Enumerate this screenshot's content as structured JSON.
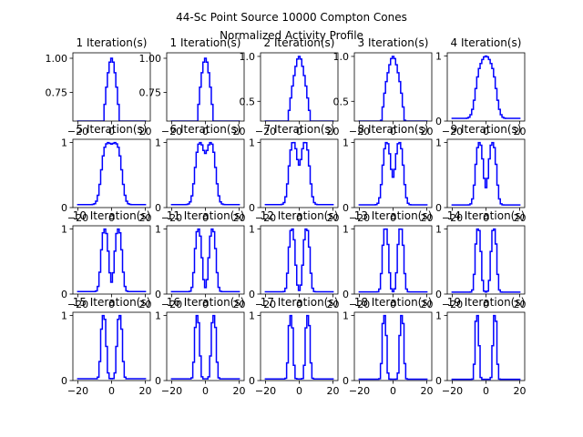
{
  "figure": {
    "suptitle_line1": "44-Sc Point Source 10000 Compton Cones",
    "suptitle_line2": "Normalized Activity Profile",
    "line_color": "#0000ff"
  },
  "chart_data": [
    {
      "type": "line",
      "title": "1 Iteration(s)",
      "iterations": 1,
      "xlim": [
        -23,
        23
      ],
      "ylim": [
        0.54,
        1.04
      ],
      "xticks": [
        -20,
        0,
        20
      ],
      "yticks": [
        0.75,
        1.0
      ],
      "ytick_labels": [
        "0.75",
        "1.00"
      ]
    },
    {
      "type": "line",
      "title": "1 Iteration(s)",
      "iterations": 1,
      "xlim": [
        -23,
        23
      ],
      "ylim": [
        0.54,
        1.04
      ],
      "xticks": [
        -20,
        0,
        20
      ],
      "yticks": [
        0.75,
        1.0
      ],
      "ytick_labels": [
        "0.75",
        "1.00"
      ]
    },
    {
      "type": "line",
      "title": "2 Iteration(s)",
      "iterations": 2,
      "xlim": [
        -23,
        23
      ],
      "ylim": [
        0.28,
        1.04
      ],
      "xticks": [
        -20,
        0,
        20
      ],
      "yticks": [
        0.5,
        1.0
      ],
      "ytick_labels": [
        "0.5",
        "1.0"
      ]
    },
    {
      "type": "line",
      "title": "3 Iteration(s)",
      "iterations": 3,
      "xlim": [
        -23,
        23
      ],
      "ylim": [
        0.28,
        1.04
      ],
      "xticks": [
        -20,
        0,
        20
      ],
      "yticks": [
        0.5,
        1.0
      ],
      "ytick_labels": [
        "0.5",
        "1.0"
      ]
    },
    {
      "type": "line",
      "title": "4 Iteration(s)",
      "iterations": 4,
      "xlim": [
        -23,
        23
      ],
      "ylim": [
        0,
        1.05
      ],
      "xticks": [
        -20,
        0,
        20
      ],
      "yticks": [
        0,
        1
      ],
      "ytick_labels": [
        "0",
        "1"
      ]
    },
    {
      "type": "line",
      "title": "5 Iteration(s)",
      "iterations": 5,
      "xlim": [
        -23,
        23
      ],
      "ylim": [
        0,
        1.05
      ],
      "xticks": [
        -20,
        0,
        20
      ],
      "yticks": [
        0,
        1
      ],
      "ytick_labels": [
        "0",
        "1"
      ]
    },
    {
      "type": "line",
      "title": "6 Iteration(s)",
      "iterations": 6,
      "xlim": [
        -23,
        23
      ],
      "ylim": [
        0,
        1.05
      ],
      "xticks": [
        -20,
        0,
        20
      ],
      "yticks": [
        0,
        1
      ],
      "ytick_labels": [
        "0",
        "1"
      ]
    },
    {
      "type": "line",
      "title": "7 Iteration(s)",
      "iterations": 7,
      "xlim": [
        -23,
        23
      ],
      "ylim": [
        0,
        1.05
      ],
      "xticks": [
        -20,
        0,
        20
      ],
      "yticks": [
        0,
        1
      ],
      "ytick_labels": [
        "0",
        "1"
      ]
    },
    {
      "type": "line",
      "title": "8 Iteration(s)",
      "iterations": 8,
      "xlim": [
        -23,
        23
      ],
      "ylim": [
        0,
        1.05
      ],
      "xticks": [
        -20,
        0,
        20
      ],
      "yticks": [
        0,
        1
      ],
      "ytick_labels": [
        "0",
        "1"
      ]
    },
    {
      "type": "line",
      "title": "9 Iteration(s)",
      "iterations": 9,
      "xlim": [
        -23,
        23
      ],
      "ylim": [
        0,
        1.05
      ],
      "xticks": [
        -20,
        0,
        20
      ],
      "yticks": [
        0,
        1
      ],
      "ytick_labels": [
        "0",
        "1"
      ]
    },
    {
      "type": "line",
      "title": "10 Iteration(s)",
      "iterations": 10,
      "xlim": [
        -23,
        23
      ],
      "ylim": [
        0,
        1.05
      ],
      "xticks": [
        -20,
        0,
        20
      ],
      "yticks": [
        0,
        1
      ],
      "ytick_labels": [
        "0",
        "1"
      ]
    },
    {
      "type": "line",
      "title": "11 Iteration(s)",
      "iterations": 11,
      "xlim": [
        -23,
        23
      ],
      "ylim": [
        0,
        1.05
      ],
      "xticks": [
        -20,
        0,
        20
      ],
      "yticks": [
        0,
        1
      ],
      "ytick_labels": [
        "0",
        "1"
      ]
    },
    {
      "type": "line",
      "title": "12 Iteration(s)",
      "iterations": 12,
      "xlim": [
        -23,
        23
      ],
      "ylim": [
        0,
        1.05
      ],
      "xticks": [
        -20,
        0,
        20
      ],
      "yticks": [
        0,
        1
      ],
      "ytick_labels": [
        "0",
        "1"
      ]
    },
    {
      "type": "line",
      "title": "13 Iteration(s)",
      "iterations": 13,
      "xlim": [
        -23,
        23
      ],
      "ylim": [
        0,
        1.05
      ],
      "xticks": [
        -20,
        0,
        20
      ],
      "yticks": [
        0,
        1
      ],
      "ytick_labels": [
        "0",
        "1"
      ]
    },
    {
      "type": "line",
      "title": "14 Iteration(s)",
      "iterations": 14,
      "xlim": [
        -23,
        23
      ],
      "ylim": [
        0,
        1.05
      ],
      "xticks": [
        -20,
        0,
        20
      ],
      "yticks": [
        0,
        1
      ],
      "ytick_labels": [
        "0",
        "1"
      ]
    },
    {
      "type": "line",
      "title": "15 Iteration(s)",
      "iterations": 15,
      "xlim": [
        -23,
        23
      ],
      "ylim": [
        0,
        1.05
      ],
      "xticks": [
        -20,
        0,
        20
      ],
      "yticks": [
        0,
        1
      ],
      "ytick_labels": [
        "0",
        "1"
      ]
    },
    {
      "type": "line",
      "title": "16 Iteration(s)",
      "iterations": 16,
      "xlim": [
        -23,
        23
      ],
      "ylim": [
        0,
        1.05
      ],
      "xticks": [
        -20,
        0,
        20
      ],
      "yticks": [
        0,
        1
      ],
      "ytick_labels": [
        "0",
        "1"
      ]
    },
    {
      "type": "line",
      "title": "17 Iteration(s)",
      "iterations": 17,
      "xlim": [
        -23,
        23
      ],
      "ylim": [
        0,
        1.05
      ],
      "xticks": [
        -20,
        0,
        20
      ],
      "yticks": [
        0,
        1
      ],
      "ytick_labels": [
        "0",
        "1"
      ]
    },
    {
      "type": "line",
      "title": "18 Iteration(s)",
      "iterations": 18,
      "xlim": [
        -23,
        23
      ],
      "ylim": [
        0,
        1.05
      ],
      "xticks": [
        -20,
        0,
        20
      ],
      "yticks": [
        0,
        1
      ],
      "ytick_labels": [
        "0",
        "1"
      ]
    },
    {
      "type": "line",
      "title": "19 Iteration(s)",
      "iterations": 19,
      "xlim": [
        -23,
        23
      ],
      "ylim": [
        0,
        1.05
      ],
      "xticks": [
        -20,
        0,
        20
      ],
      "yticks": [
        0,
        1
      ],
      "ytick_labels": [
        "0",
        "1"
      ]
    }
  ]
}
